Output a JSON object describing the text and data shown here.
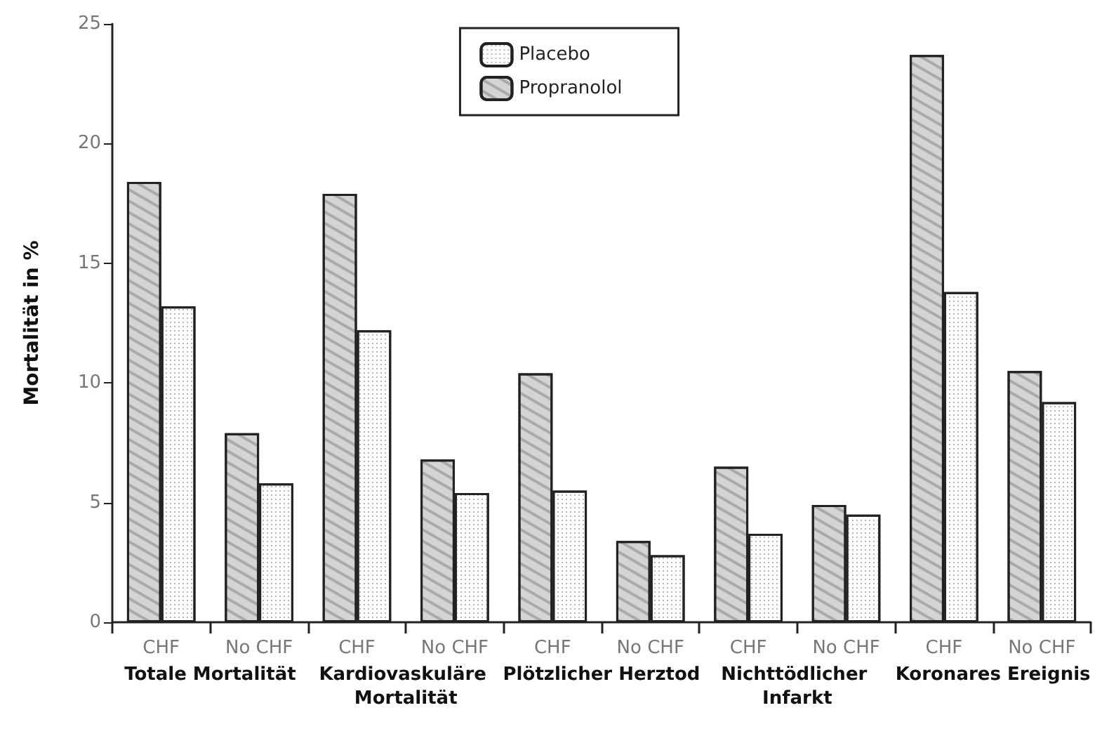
{
  "chart_data": {
    "type": "bar",
    "ylabel": "Mortalität in %",
    "categories": [
      "CHF",
      "No CHF",
      "CHF",
      "No CHF",
      "CHF",
      "No CHF",
      "CHF",
      "No CHF",
      "CHF",
      "No CHF"
    ],
    "series": [
      {
        "name": "Propranolol",
        "color": "#d4d4d4",
        "values": [
          18.4,
          7.9,
          17.9,
          6.8,
          10.4,
          3.4,
          6.5,
          4.9,
          23.7,
          10.5
        ]
      },
      {
        "name": "Placebo",
        "color": "#ffffff",
        "values": [
          13.2,
          5.8,
          12.2,
          5.4,
          5.5,
          2.8,
          3.7,
          4.5,
          13.8,
          9.2
        ]
      }
    ],
    "annotations": [
      "Totale Mortalität",
      "Kardiovaskuläre Mortalität",
      "Plötzlicher Herztod",
      "Nichttödlicher Infarkt",
      "Koronares Ereignis"
    ],
    "ylim": [
      0,
      25
    ],
    "yticks": [
      0,
      5,
      10,
      15,
      20,
      25
    ],
    "grid": false,
    "legend": "top"
  }
}
